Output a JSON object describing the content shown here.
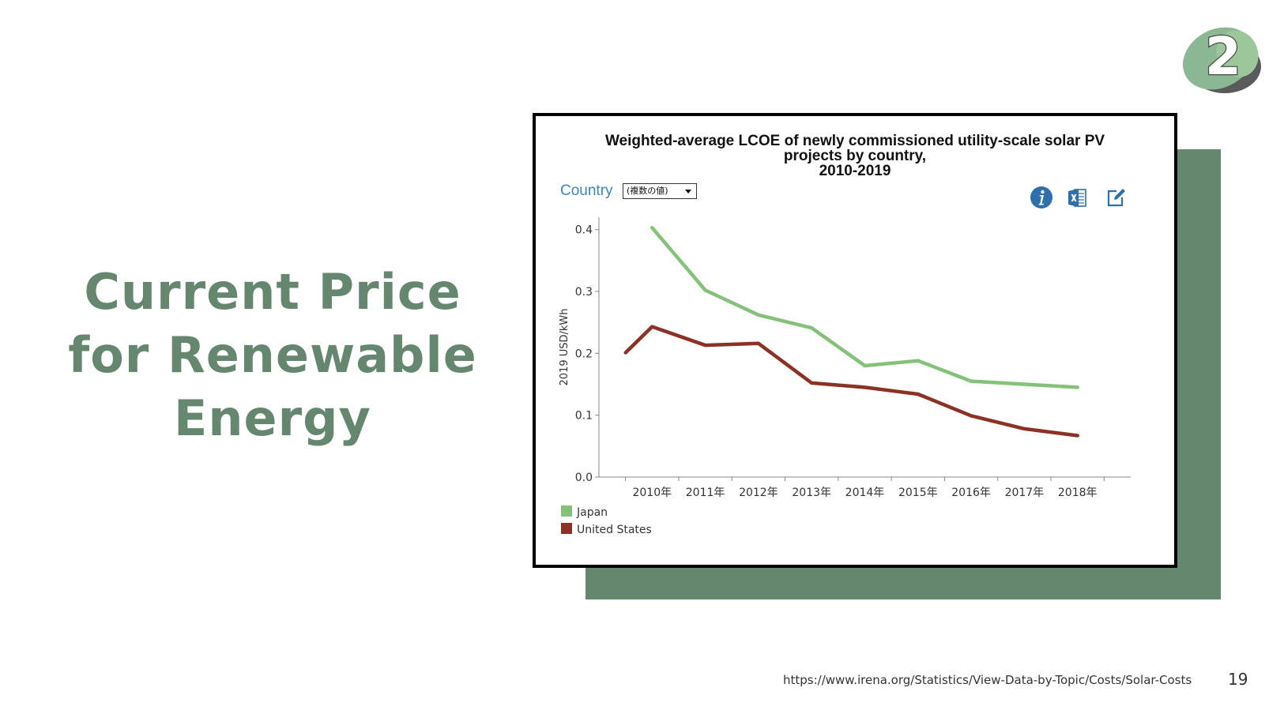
{
  "slide": {
    "title_lines": [
      "Current Price",
      "for Renewable",
      "Energy"
    ],
    "badge_number": "2",
    "source_url": "https://www.irena.org/Statistics/View-Data-by-Topic/Costs/Solar-Costs",
    "page_number": "19",
    "colors": {
      "title": "#66876f",
      "accent_block": "#64876e"
    }
  },
  "controls": {
    "country_label": "Country",
    "country_selected": "(複数の値)",
    "icons": [
      "info-icon",
      "excel-icon",
      "edit-icon"
    ]
  },
  "chart_data": {
    "type": "line",
    "title_lines": [
      "Weighted-average LCOE of newly commissioned utility-scale solar PV",
      "projects by country,",
      "2010-2019"
    ],
    "xlabel": "",
    "ylabel": "2019 USD/kWh",
    "categories": [
      "2010年",
      "2011年",
      "2012年",
      "2013年",
      "2014年",
      "2015年",
      "2016年",
      "2017年",
      "2018年"
    ],
    "ylim": [
      0,
      0.42
    ],
    "yticks": [
      "0.0",
      "0.1",
      "0.2",
      "0.3",
      "0.4"
    ],
    "grid": false,
    "legend_placement": "bottom-left",
    "series": [
      {
        "name": "Japan",
        "color": "#84c179",
        "x": [
          2010.5,
          2011.5,
          2012.5,
          2013.5,
          2014.5,
          2015.5,
          2016.5,
          2017.5,
          2018.5
        ],
        "values": [
          0.403,
          0.302,
          0.262,
          0.241,
          0.18,
          0.188,
          0.155,
          0.15,
          0.145
        ]
      },
      {
        "name": "United States",
        "color": "#8b3224",
        "x": [
          2010,
          2010.5,
          2011.5,
          2012.5,
          2013.5,
          2014.5,
          2015.5,
          2016.5,
          2017.5,
          2018.5
        ],
        "values": [
          0.201,
          0.243,
          0.213,
          0.216,
          0.152,
          0.145,
          0.134,
          0.099,
          0.078,
          0.067
        ]
      }
    ]
  }
}
